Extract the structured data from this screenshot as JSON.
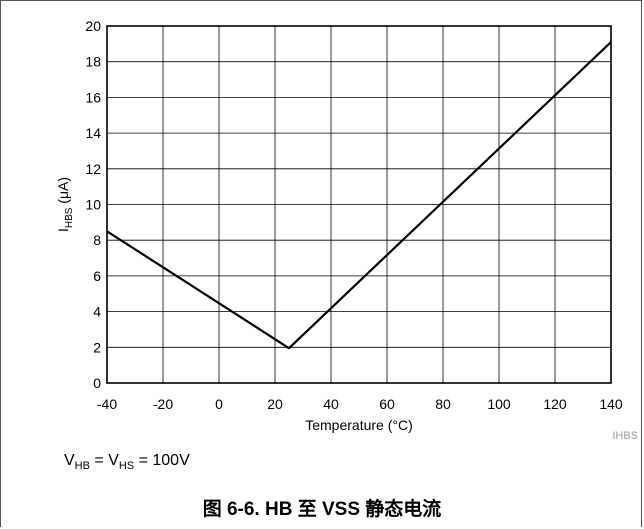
{
  "chart_data": {
    "type": "line",
    "title": "",
    "xlabel": "Temperature (°C)",
    "ylabel": {
      "main": "I",
      "sub": "HBS",
      "unit": " (μA)"
    },
    "xlim": [
      -40,
      140
    ],
    "ylim": [
      0,
      20
    ],
    "x_ticks": [
      -40,
      -20,
      0,
      20,
      40,
      60,
      80,
      100,
      120,
      140
    ],
    "y_ticks": [
      0,
      2,
      4,
      6,
      8,
      10,
      12,
      14,
      16,
      18,
      20
    ],
    "grid": true,
    "series": [
      {
        "x": [
          -40,
          25,
          140
        ],
        "y": [
          8.5,
          1.95,
          19.1
        ]
      }
    ]
  },
  "figure_code": "IHBS",
  "condition": {
    "v1": "V",
    "v1_sub": "HB",
    "eq1": " = ",
    "v2": "V",
    "v2_sub": "HS",
    "eq2": " = 100V"
  },
  "caption": "图 6-6. HB 至 VSS 静态电流"
}
